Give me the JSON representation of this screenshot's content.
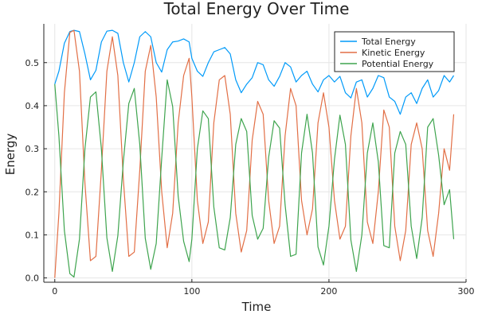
{
  "chart_data": {
    "type": "line",
    "title": "Total Energy Over Time",
    "xlabel": "Time",
    "ylabel": "Energy",
    "xlim": [
      -8,
      300
    ],
    "ylim": [
      -0.01,
      0.59
    ],
    "xticks": [
      0,
      100,
      200,
      300
    ],
    "yticks": [
      0.0,
      0.1,
      0.2,
      0.3,
      0.4,
      0.5
    ],
    "xtick_labels": [
      "0",
      "100",
      "200",
      "300"
    ],
    "ytick_labels": [
      "0.0",
      "0.1",
      "0.2",
      "0.3",
      "0.4",
      "0.5"
    ],
    "grid": true,
    "legend": "top-right",
    "series": [
      {
        "name": "Total Energy",
        "color": "#009af9",
        "x": [
          0,
          3,
          7,
          11,
          14,
          18,
          22,
          26,
          30,
          34,
          38,
          42,
          46,
          50,
          54,
          58,
          62,
          66,
          70,
          74,
          78,
          82,
          86,
          90,
          94,
          98,
          100,
          104,
          108,
          112,
          116,
          120,
          124,
          128,
          132,
          136,
          140,
          144,
          148,
          152,
          156,
          160,
          164,
          168,
          172,
          176,
          180,
          184,
          188,
          192,
          196,
          200,
          204,
          208,
          212,
          216,
          220,
          224,
          228,
          232,
          236,
          240,
          244,
          248,
          252,
          256,
          260,
          264,
          268,
          272,
          276,
          280,
          284,
          288,
          291
        ],
        "values": [
          0.45,
          0.48,
          0.545,
          0.572,
          0.575,
          0.572,
          0.52,
          0.46,
          0.482,
          0.548,
          0.573,
          0.575,
          0.568,
          0.5,
          0.455,
          0.5,
          0.56,
          0.572,
          0.56,
          0.5,
          0.478,
          0.53,
          0.548,
          0.55,
          0.555,
          0.548,
          0.51,
          0.48,
          0.468,
          0.5,
          0.525,
          0.53,
          0.535,
          0.52,
          0.46,
          0.43,
          0.45,
          0.465,
          0.5,
          0.495,
          0.46,
          0.445,
          0.468,
          0.5,
          0.49,
          0.455,
          0.47,
          0.48,
          0.45,
          0.432,
          0.46,
          0.47,
          0.455,
          0.468,
          0.43,
          0.418,
          0.455,
          0.46,
          0.42,
          0.44,
          0.47,
          0.465,
          0.42,
          0.41,
          0.38,
          0.42,
          0.43,
          0.405,
          0.44,
          0.46,
          0.42,
          0.435,
          0.47,
          0.455,
          0.47
        ]
      },
      {
        "name": "Kinetic Energy",
        "color": "#e26f46",
        "x": [
          0,
          3,
          7,
          11,
          14,
          18,
          22,
          26,
          30,
          34,
          38,
          42,
          46,
          50,
          54,
          58,
          62,
          66,
          70,
          74,
          78,
          82,
          86,
          90,
          94,
          98,
          100,
          104,
          108,
          112,
          116,
          120,
          124,
          128,
          132,
          136,
          140,
          144,
          148,
          152,
          156,
          160,
          164,
          168,
          172,
          176,
          180,
          184,
          188,
          192,
          196,
          200,
          204,
          208,
          212,
          216,
          220,
          224,
          228,
          232,
          236,
          240,
          244,
          248,
          252,
          256,
          260,
          264,
          268,
          272,
          276,
          280,
          284,
          288,
          291
        ],
        "values": [
          0.0,
          0.15,
          0.43,
          0.57,
          0.575,
          0.48,
          0.22,
          0.04,
          0.05,
          0.25,
          0.48,
          0.56,
          0.47,
          0.23,
          0.05,
          0.06,
          0.25,
          0.48,
          0.54,
          0.42,
          0.2,
          0.07,
          0.15,
          0.36,
          0.47,
          0.51,
          0.42,
          0.18,
          0.08,
          0.13,
          0.36,
          0.46,
          0.47,
          0.38,
          0.15,
          0.06,
          0.11,
          0.32,
          0.41,
          0.38,
          0.18,
          0.08,
          0.12,
          0.33,
          0.44,
          0.4,
          0.18,
          0.1,
          0.16,
          0.36,
          0.43,
          0.35,
          0.18,
          0.09,
          0.12,
          0.33,
          0.44,
          0.36,
          0.13,
          0.08,
          0.2,
          0.39,
          0.35,
          0.12,
          0.04,
          0.11,
          0.31,
          0.36,
          0.3,
          0.11,
          0.05,
          0.15,
          0.3,
          0.25,
          0.38
        ]
      },
      {
        "name": "Potential Energy",
        "color": "#3ea44e",
        "x": [
          0,
          3,
          7,
          11,
          14,
          18,
          22,
          26,
          30,
          34,
          38,
          42,
          46,
          50,
          54,
          58,
          62,
          66,
          70,
          74,
          78,
          82,
          86,
          90,
          94,
          98,
          100,
          104,
          108,
          112,
          116,
          120,
          124,
          128,
          132,
          136,
          140,
          144,
          148,
          152,
          156,
          160,
          164,
          168,
          172,
          176,
          180,
          184,
          188,
          192,
          196,
          200,
          204,
          208,
          212,
          216,
          220,
          224,
          228,
          232,
          236,
          240,
          244,
          248,
          252,
          256,
          260,
          264,
          268,
          272,
          276,
          280,
          284,
          288,
          291
        ],
        "values": [
          0.45,
          0.33,
          0.11,
          0.01,
          0.002,
          0.09,
          0.3,
          0.42,
          0.432,
          0.3,
          0.093,
          0.015,
          0.098,
          0.27,
          0.405,
          0.44,
          0.31,
          0.092,
          0.02,
          0.08,
          0.278,
          0.46,
          0.398,
          0.19,
          0.085,
          0.038,
          0.09,
          0.3,
          0.388,
          0.37,
          0.165,
          0.07,
          0.065,
          0.14,
          0.31,
          0.37,
          0.34,
          0.145,
          0.09,
          0.115,
          0.28,
          0.365,
          0.348,
          0.17,
          0.05,
          0.055,
          0.29,
          0.38,
          0.29,
          0.072,
          0.03,
          0.12,
          0.275,
          0.378,
          0.31,
          0.088,
          0.015,
          0.1,
          0.29,
          0.36,
          0.27,
          0.075,
          0.07,
          0.29,
          0.34,
          0.31,
          0.12,
          0.045,
          0.14,
          0.35,
          0.37,
          0.285,
          0.17,
          0.205,
          0.09
        ]
      }
    ]
  }
}
